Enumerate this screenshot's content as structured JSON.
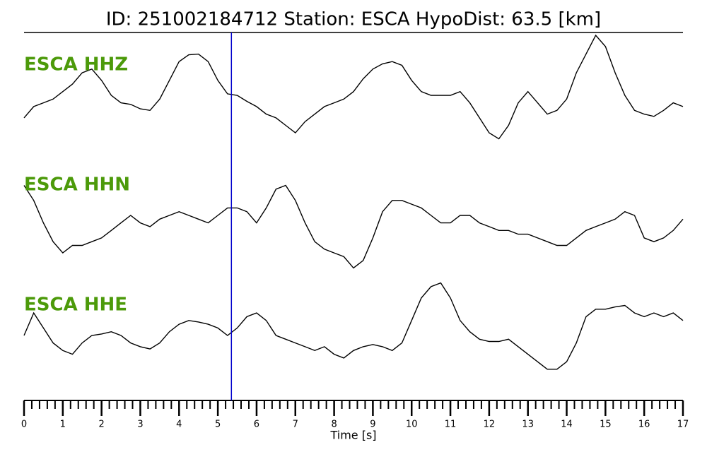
{
  "chart_data": {
    "type": "seismogram",
    "title": "ID: 251002184712   Station: ESCA   HypoDist:    63.5 [km]",
    "xlabel": "Time [s]",
    "xlim": [
      0,
      17
    ],
    "xticks": [
      0,
      1,
      2,
      3,
      4,
      5,
      6,
      7,
      8,
      9,
      10,
      11,
      12,
      13,
      14,
      15,
      16,
      17
    ],
    "minor_tick_step": 0.2,
    "pick_time": 5.35,
    "pick_color": "#0000cc",
    "label_color": "#4c9a0a",
    "ylim": [
      -8,
      8
    ],
    "x": [
      0,
      0.25,
      0.5,
      0.75,
      1,
      1.25,
      1.5,
      1.75,
      2,
      2.25,
      2.5,
      2.75,
      3,
      3.25,
      3.5,
      3.75,
      4,
      4.25,
      4.5,
      4.75,
      5,
      5.25,
      5.5,
      5.75,
      6,
      6.25,
      6.5,
      6.75,
      7,
      7.25,
      7.5,
      7.75,
      8,
      8.25,
      8.5,
      8.75,
      9,
      9.25,
      9.5,
      9.75,
      10,
      10.25,
      10.5,
      10.75,
      11,
      11.25,
      11.5,
      11.75,
      12,
      12.25,
      12.5,
      12.75,
      13,
      13.25,
      13.5,
      13.75,
      14,
      14.25,
      14.5,
      14.75,
      15,
      15.25,
      15.5,
      15.75,
      16,
      16.25,
      16.5,
      16.75,
      17
    ],
    "series": [
      {
        "name": "ESCA HHZ",
        "color": "#000000",
        "values": [
          -3,
          -1.5,
          -1,
          -0.5,
          0.5,
          1.5,
          3,
          3.5,
          2,
          0,
          -1,
          -1.2,
          -1.8,
          -2,
          -0.5,
          2,
          4.5,
          5.4,
          5.5,
          4.5,
          2,
          0.2,
          0,
          -0.8,
          -1.5,
          -2.5,
          -3,
          -4,
          -5,
          -3.5,
          -2.5,
          -1.5,
          -1,
          -0.5,
          0.5,
          2.2,
          3.5,
          4.2,
          4.5,
          4,
          2,
          0.5,
          0,
          0,
          0,
          0.5,
          -1,
          -3,
          -5,
          -5.8,
          -4,
          -1,
          0.5,
          -1,
          -2.5,
          -2,
          -0.5,
          3,
          5.5,
          8,
          6.5,
          3,
          0,
          -2,
          -2.5,
          -2.8,
          -2,
          -1,
          -1.5
        ]
      },
      {
        "name": "ESCA HHN",
        "color": "#000000",
        "values": [
          4,
          2,
          -1,
          -3.5,
          -5,
          -4,
          -4,
          -3.5,
          -3,
          -2,
          -1,
          0,
          -1,
          -1.5,
          -0.5,
          0,
          0.5,
          0,
          -0.5,
          -1,
          0,
          1,
          1,
          0.5,
          -1,
          1,
          3.5,
          4,
          2,
          -1,
          -3.5,
          -4.5,
          -5,
          -5.5,
          -7,
          -6,
          -3,
          0.5,
          2,
          2,
          1.5,
          1,
          0,
          -1,
          -1,
          0,
          0,
          -1,
          -1.5,
          -2,
          -2,
          -2.5,
          -2.5,
          -3,
          -3.5,
          -4,
          -4,
          -3,
          -2,
          -1.5,
          -1,
          -0.5,
          0.5,
          0,
          -3,
          -3.5,
          -3,
          -2,
          -0.5
        ]
      },
      {
        "name": "ESCA HHE",
        "color": "#000000",
        "values": [
          0,
          3,
          1,
          -1,
          -2,
          -2.5,
          -1,
          0,
          0.2,
          0.5,
          0,
          -1,
          -1.5,
          -1.8,
          -1,
          0.5,
          1.5,
          2,
          1.8,
          1.5,
          1,
          0,
          1,
          2.5,
          3,
          2,
          0,
          -0.5,
          -1,
          -1.5,
          -2,
          -1.5,
          -2.5,
          -3,
          -2,
          -1.5,
          -1.2,
          -1.5,
          -2,
          -1,
          2,
          5,
          6.5,
          7,
          5,
          2,
          0.5,
          -0.5,
          -0.8,
          -0.8,
          -0.5,
          -1.5,
          -2.5,
          -3.5,
          -4.5,
          -4.5,
          -3.5,
          -1,
          2.5,
          3.5,
          3.5,
          3.8,
          4,
          3,
          2.5,
          3,
          2.5,
          3,
          2
        ]
      }
    ]
  }
}
